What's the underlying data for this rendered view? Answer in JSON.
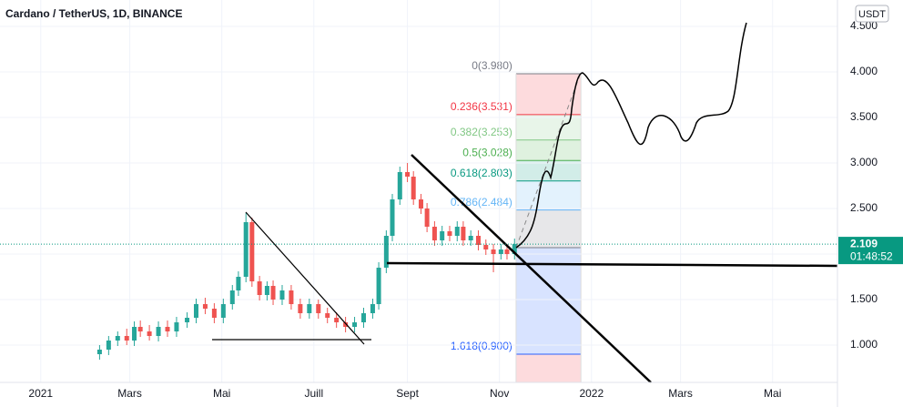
{
  "chart_data": {
    "type": "candlestick",
    "title": "Cardano / TetherUS, 1D, BINANCE",
    "currency": "USDT",
    "up_color": "#26a69a",
    "down_color": "#ef5350",
    "xlim": [
      -27,
      528
    ],
    "ylim": [
      0.59,
      4.79
    ],
    "xticks": [
      {
        "value": 0,
        "label": "2021"
      },
      {
        "value": 59,
        "label": "Mars"
      },
      {
        "value": 120,
        "label": "Mai"
      },
      {
        "value": 181,
        "label": "Juill"
      },
      {
        "value": 243,
        "label": "Sept"
      },
      {
        "value": 304,
        "label": "Nov"
      },
      {
        "value": 365,
        "label": "2022"
      },
      {
        "value": 424,
        "label": "Mars"
      },
      {
        "value": 485,
        "label": "Mai"
      }
    ],
    "yticks": [
      {
        "value": 1,
        "label": "1.000"
      },
      {
        "value": 1.5,
        "label": "1.500"
      },
      {
        "value": 2,
        "label": "2.000"
      },
      {
        "value": 2.5,
        "label": "2.500"
      },
      {
        "value": 3,
        "label": "3.000"
      },
      {
        "value": 3.5,
        "label": "3.500"
      },
      {
        "value": 4,
        "label": "4.000"
      },
      {
        "value": 4.5,
        "label": "4.500"
      }
    ],
    "x": [
      39,
      45,
      51,
      57,
      62,
      66,
      72,
      78,
      84,
      90,
      97,
      103,
      109,
      115,
      121,
      127,
      131,
      136,
      140,
      145,
      150,
      154,
      160,
      166,
      172,
      178,
      184,
      190,
      196,
      202,
      208,
      214,
      220,
      224,
      229,
      233,
      238,
      243,
      247,
      252,
      256,
      261,
      266,
      271,
      276,
      280,
      285,
      290,
      295,
      300,
      305,
      309,
      314
    ],
    "open": [
      0.9,
      0.95,
      1.05,
      1.1,
      1.05,
      1.2,
      1.15,
      1.1,
      1.2,
      1.15,
      1.25,
      1.3,
      1.45,
      1.4,
      1.3,
      1.45,
      1.6,
      1.75,
      2.35,
      1.7,
      1.55,
      1.65,
      1.5,
      1.6,
      1.45,
      1.35,
      1.45,
      1.35,
      1.3,
      1.25,
      1.2,
      1.25,
      1.35,
      1.45,
      1.85,
      2.2,
      2.6,
      2.9,
      2.85,
      2.6,
      2.5,
      2.3,
      2.15,
      2.25,
      2.2,
      2.3,
      2.15,
      2.2,
      2.1,
      2.05,
      2.0,
      2.05,
      2.0
    ],
    "high": [
      1.0,
      1.1,
      1.15,
      1.18,
      1.26,
      1.27,
      1.22,
      1.26,
      1.27,
      1.31,
      1.36,
      1.51,
      1.52,
      1.46,
      1.51,
      1.66,
      1.81,
      2.45,
      2.4,
      1.76,
      1.7,
      1.71,
      1.66,
      1.66,
      1.51,
      1.51,
      1.5,
      1.41,
      1.36,
      1.31,
      1.31,
      1.41,
      1.51,
      1.91,
      2.26,
      2.66,
      2.96,
      3.0,
      2.91,
      2.66,
      2.56,
      2.36,
      2.31,
      2.31,
      2.36,
      2.36,
      2.26,
      2.26,
      2.16,
      2.11,
      2.11,
      2.11,
      2.17
    ],
    "low": [
      0.84,
      0.89,
      0.99,
      1.0,
      0.99,
      1.09,
      1.05,
      1.04,
      1.09,
      1.09,
      1.19,
      1.24,
      1.34,
      1.24,
      1.24,
      1.39,
      1.54,
      1.69,
      1.64,
      1.49,
      1.49,
      1.44,
      1.44,
      1.39,
      1.29,
      1.29,
      1.29,
      1.24,
      1.19,
      1.14,
      1.14,
      1.19,
      1.29,
      1.39,
      1.79,
      2.14,
      2.54,
      2.79,
      2.54,
      2.44,
      2.24,
      2.09,
      2.09,
      2.14,
      2.14,
      2.09,
      2.09,
      2.04,
      1.99,
      1.8,
      1.94,
      1.94,
      1.94
    ],
    "close": [
      0.95,
      1.05,
      1.1,
      1.05,
      1.2,
      1.15,
      1.1,
      1.2,
      1.15,
      1.25,
      1.3,
      1.45,
      1.4,
      1.3,
      1.45,
      1.6,
      1.75,
      2.35,
      1.7,
      1.55,
      1.65,
      1.5,
      1.6,
      1.45,
      1.35,
      1.45,
      1.35,
      1.3,
      1.25,
      1.2,
      1.25,
      1.35,
      1.45,
      1.85,
      2.2,
      2.6,
      2.9,
      2.85,
      2.6,
      2.5,
      2.3,
      2.15,
      2.25,
      2.2,
      2.3,
      2.15,
      2.2,
      2.1,
      2.05,
      2.0,
      2.05,
      2.0,
      2.109
    ],
    "last_price": {
      "value": 2.109,
      "label": "2.109"
    },
    "countdown": "01:48:52",
    "last_price_color": "#089981",
    "fib_x": [
      315,
      358
    ],
    "fib_levels": [
      {
        "value": 3.98,
        "label": "0(3.980)",
        "color": "#787b86"
      },
      {
        "value": 3.531,
        "label": "0.236(3.531)",
        "color": "#f23645"
      },
      {
        "value": 3.253,
        "label": "0.382(3.253)",
        "color": "#81c784"
      },
      {
        "value": 3.028,
        "label": "0.5(3.028)",
        "color": "#4caf50"
      },
      {
        "value": 2.803,
        "label": "0.618(2.803)",
        "color": "#089981"
      },
      {
        "value": 2.484,
        "label": "0.786(2.484)",
        "color": "#64b5f6"
      },
      {
        "value": 2.07,
        "color": "#787b86"
      },
      {
        "value": 0.9,
        "label": "1.618(0.900)",
        "color": "#2962ff"
      }
    ],
    "fib_below_color": "#f23645"
  }
}
